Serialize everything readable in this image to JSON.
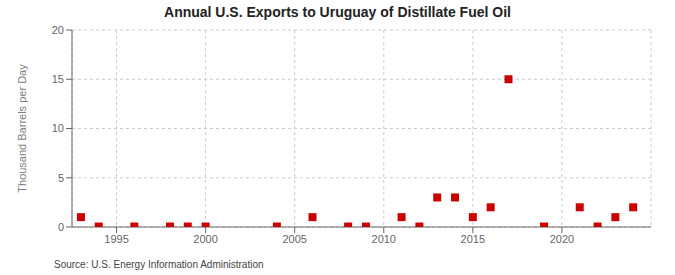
{
  "chart_data": {
    "type": "scatter",
    "title": "Annual U.S. Exports to Uruguay of Distillate Fuel Oil",
    "ylabel": "Thousand Barrels per Day",
    "annotations": [
      "Source: U.S. Energy Information Administration"
    ],
    "x": [
      1993,
      1994,
      1996,
      1998,
      1999,
      2000,
      2004,
      2006,
      2008,
      2009,
      2011,
      2012,
      2013,
      2014,
      2015,
      2016,
      2017,
      2019,
      2021,
      2022,
      2023,
      2024
    ],
    "values": [
      1.0,
      0.05,
      0.05,
      0.05,
      0.05,
      0.05,
      0.05,
      1.0,
      0.05,
      0.05,
      1.0,
      0.05,
      3.0,
      3.0,
      1.0,
      2.0,
      15.0,
      0.05,
      2.0,
      0.05,
      1.0,
      2.0
    ],
    "color": "#cc0000",
    "marker": "square",
    "xlim": [
      1992.5,
      2025
    ],
    "xticks": [
      1995,
      2000,
      2005,
      2010,
      2015,
      2020
    ],
    "ylim": [
      0,
      20
    ],
    "yticks": [
      0,
      5,
      10,
      15,
      20
    ],
    "grid": true
  }
}
